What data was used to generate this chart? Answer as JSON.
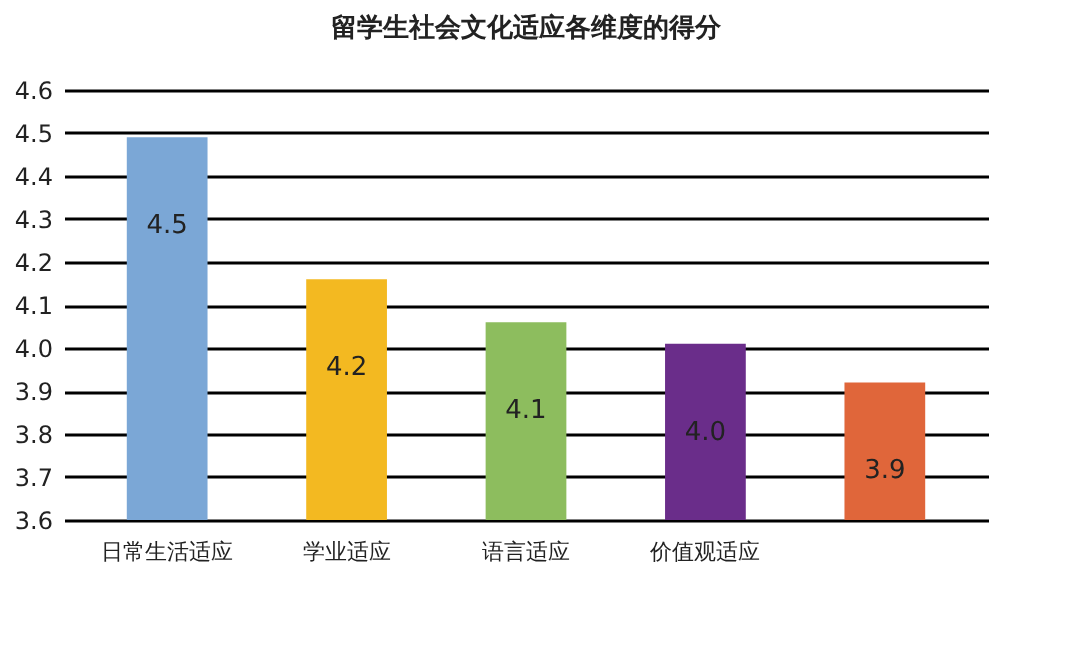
{
  "chart_data": {
    "type": "bar",
    "title": "留学生社会文化适应各维度的得分",
    "categories": [
      "日常生活适应",
      "学业适应",
      "语言适应",
      "价值观适应",
      null
    ],
    "values": [
      4.49,
      4.16,
      4.06,
      4.01,
      3.92
    ],
    "value_labels": [
      "4.5",
      "4.2",
      "4.1",
      "4.0",
      "3.9"
    ],
    "colors": [
      "#7ba7d6",
      "#f3b921",
      "#8dbd5e",
      "#6a2d8a",
      "#e0663a"
    ],
    "ylim": [
      3.6,
      4.6
    ],
    "yticks": [
      3.6,
      3.7,
      3.8,
      3.9,
      {
        "value": 4,
        "label": "4.0"
      },
      4.1,
      4.2,
      4.3,
      4.4,
      4.5,
      4.6
    ],
    "grid": "y"
  }
}
